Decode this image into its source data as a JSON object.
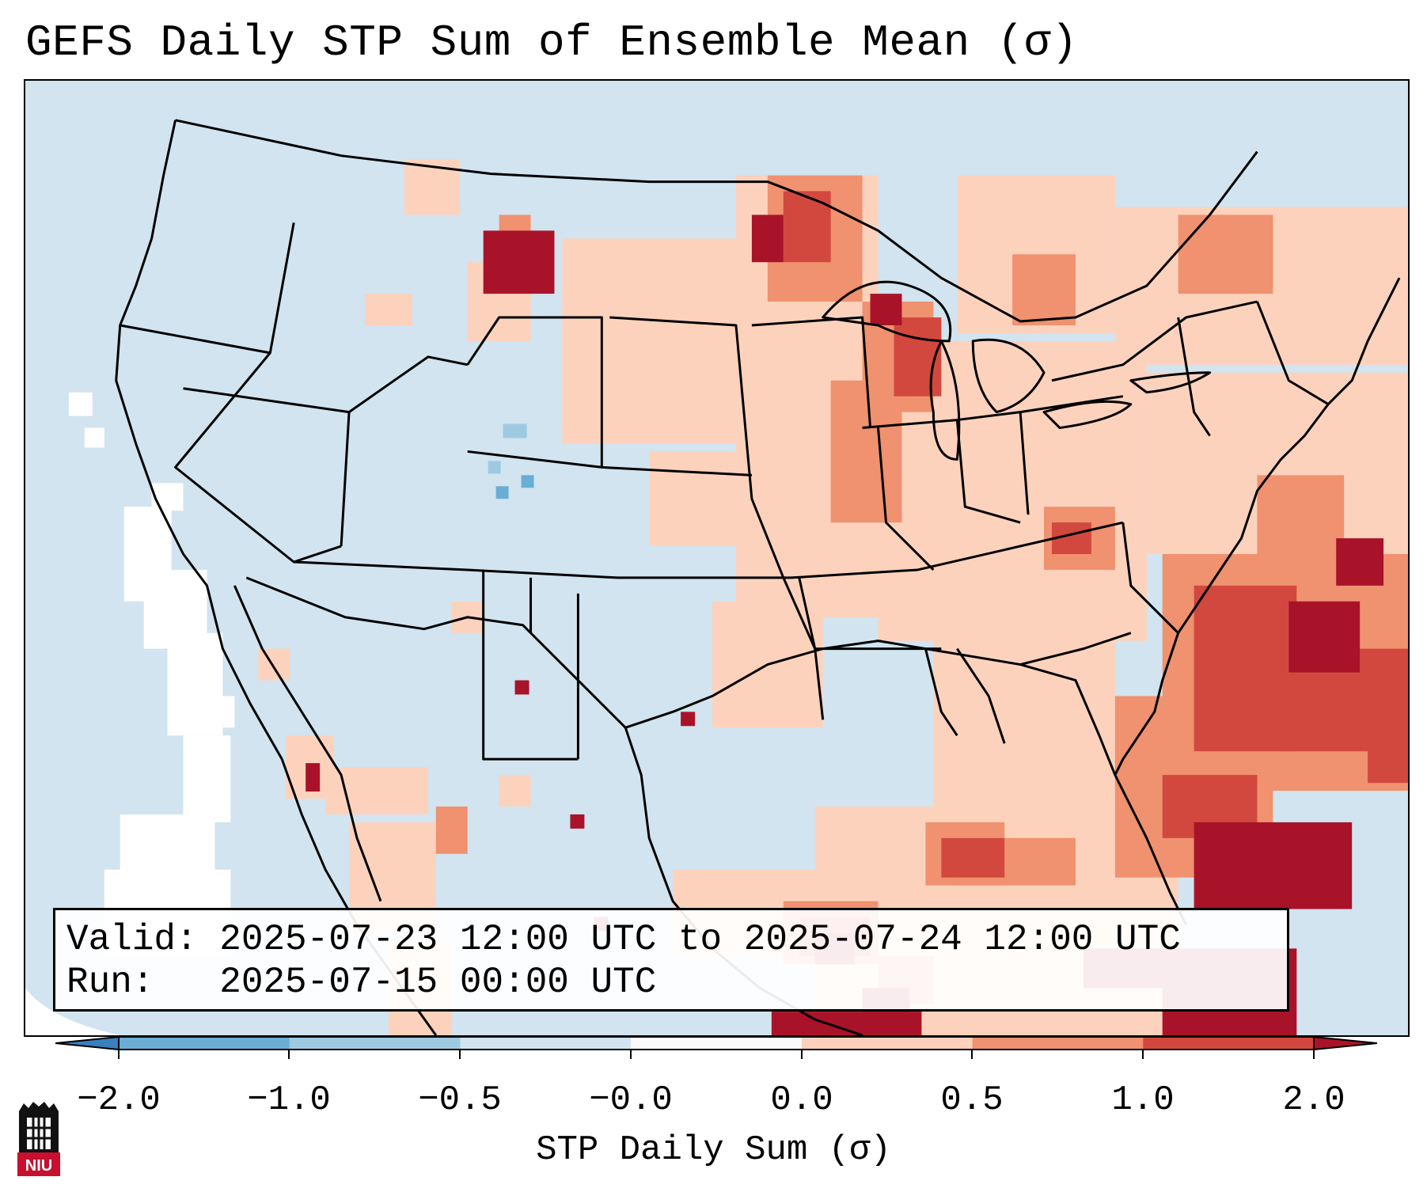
{
  "title": "GEFS Daily STP Sum of Ensemble Mean (σ)",
  "valid_label": "Valid: 2025-07-23 12:00 UTC to 2025-07-24 12:00 UTC",
  "run_label": "Run:   2025-07-15 00:00 UTC",
  "colorbar": {
    "label": "STP Daily Sum (σ)",
    "ticks": [
      "−2.0",
      "−1.0",
      "−0.5",
      "−0.0",
      "0.0",
      "0.5",
      "1.0",
      "2.0"
    ],
    "colors": [
      "#3b7fbd",
      "#6aaed6",
      "#9ecae1",
      "#d1e4ef",
      "#fbfbfb",
      "#fdd2bc",
      "#f0916f",
      "#d2483f",
      "#a9132a"
    ]
  },
  "logo": {
    "text": "NIU",
    "icon": "niu-logo-icon"
  },
  "map": {
    "background_color": "#d1e4ef",
    "region": "Continental United States, southern Canada, northern Mexico, Gulf of Mexico, western Atlantic"
  }
}
